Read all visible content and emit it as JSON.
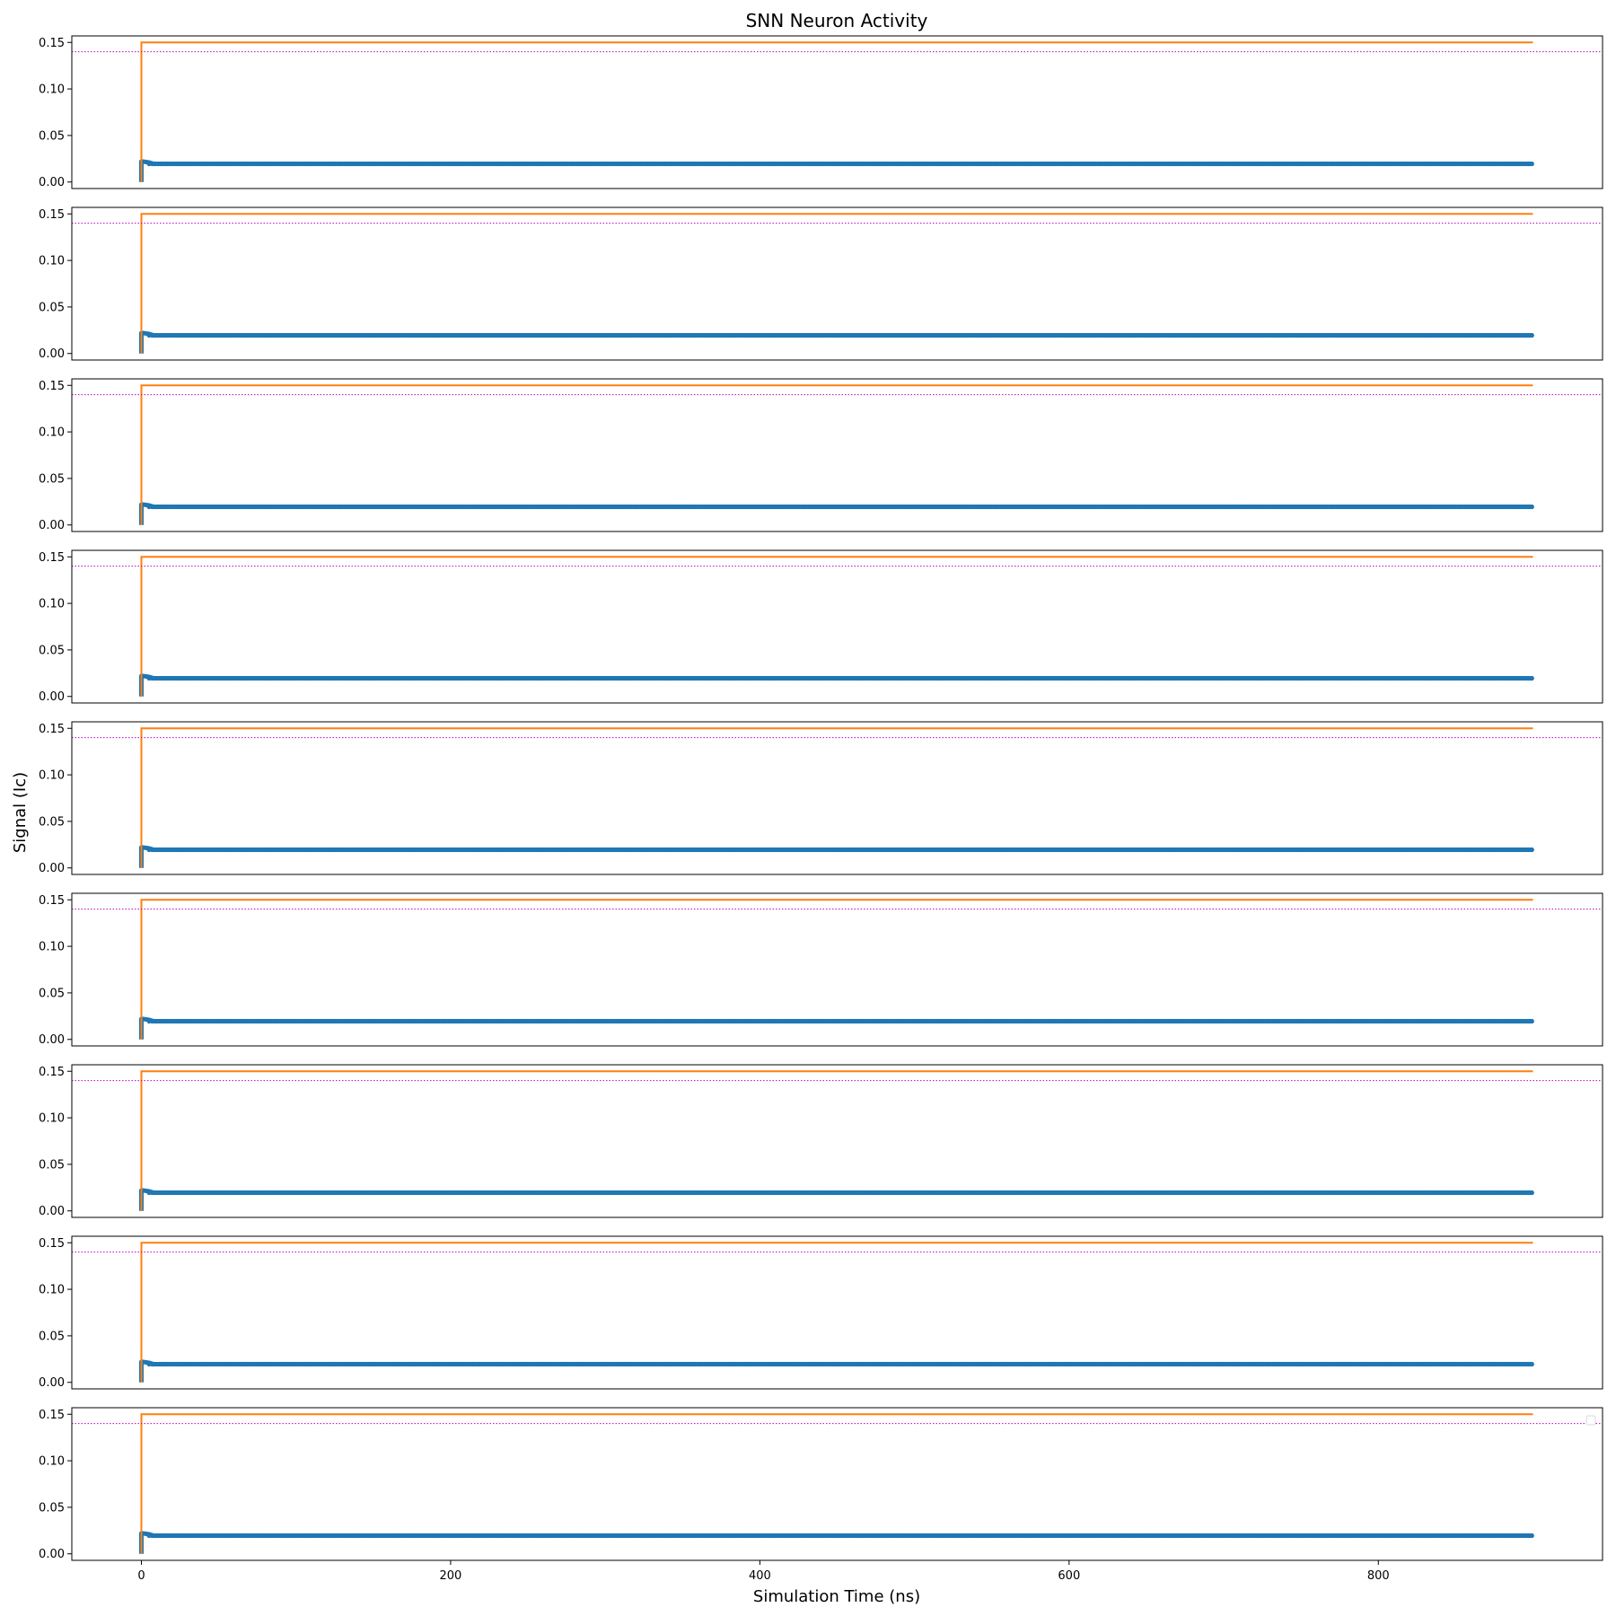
{
  "chart_data": {
    "type": "line",
    "title": "SNN Neuron Activity",
    "xlabel": "Simulation Time (ns)",
    "ylabel": "Signal (Ic)",
    "num_panels": 9,
    "sharex": true,
    "xlim": [
      -45,
      945
    ],
    "ylim": [
      -0.007,
      0.157
    ],
    "x_ticks": [
      0,
      200,
      400,
      600,
      800
    ],
    "x_tick_labels": [
      "0",
      "200",
      "400",
      "600",
      "800"
    ],
    "y_ticks": [
      0.0,
      0.05,
      0.1,
      0.15
    ],
    "y_tick_labels": [
      "0.00",
      "0.05",
      "0.10",
      "0.15"
    ],
    "grid": false,
    "legend": {
      "location": "upper right",
      "panel": 9,
      "entries": []
    },
    "colors": {
      "membrane": "#1f77b4",
      "input": "#ff7f0e",
      "threshold": "#bf00bf"
    },
    "panels": [
      {
        "series": [
          {
            "role": "membrane",
            "style": "thick-marker-line",
            "x": [
              0,
              0,
              1,
              5,
              8,
              10,
              900
            ],
            "y": [
              0.0,
              0.022,
              0.022,
              0.021,
              0.0195,
              0.0195,
              0.0195
            ]
          },
          {
            "role": "input",
            "style": "step-line",
            "x": [
              0,
              0,
              900
            ],
            "y": [
              0.0,
              0.15,
              0.15
            ]
          },
          {
            "role": "threshold",
            "style": "dotted-hline",
            "y": 0.14
          }
        ]
      },
      {
        "series": [
          {
            "role": "membrane",
            "style": "thick-marker-line",
            "x": [
              0,
              0,
              1,
              5,
              8,
              10,
              900
            ],
            "y": [
              0.0,
              0.022,
              0.022,
              0.021,
              0.0195,
              0.0195,
              0.0195
            ]
          },
          {
            "role": "input",
            "style": "step-line",
            "x": [
              0,
              0,
              900
            ],
            "y": [
              0.0,
              0.15,
              0.15
            ]
          },
          {
            "role": "threshold",
            "style": "dotted-hline",
            "y": 0.14
          }
        ]
      },
      {
        "series": [
          {
            "role": "membrane",
            "style": "thick-marker-line",
            "x": [
              0,
              0,
              1,
              5,
              8,
              10,
              900
            ],
            "y": [
              0.0,
              0.022,
              0.022,
              0.021,
              0.0195,
              0.0195,
              0.0195
            ]
          },
          {
            "role": "input",
            "style": "step-line",
            "x": [
              0,
              0,
              900
            ],
            "y": [
              0.0,
              0.15,
              0.15
            ]
          },
          {
            "role": "threshold",
            "style": "dotted-hline",
            "y": 0.14
          }
        ]
      },
      {
        "series": [
          {
            "role": "membrane",
            "style": "thick-marker-line",
            "x": [
              0,
              0,
              1,
              5,
              8,
              10,
              900
            ],
            "y": [
              0.0,
              0.022,
              0.022,
              0.021,
              0.0195,
              0.0195,
              0.0195
            ]
          },
          {
            "role": "input",
            "style": "step-line",
            "x": [
              0,
              0,
              900
            ],
            "y": [
              0.0,
              0.15,
              0.15
            ]
          },
          {
            "role": "threshold",
            "style": "dotted-hline",
            "y": 0.14
          }
        ]
      },
      {
        "series": [
          {
            "role": "membrane",
            "style": "thick-marker-line",
            "x": [
              0,
              0,
              1,
              5,
              8,
              10,
              900
            ],
            "y": [
              0.0,
              0.022,
              0.022,
              0.021,
              0.0195,
              0.0195,
              0.0195
            ]
          },
          {
            "role": "input",
            "style": "step-line",
            "x": [
              0,
              0,
              900
            ],
            "y": [
              0.0,
              0.15,
              0.15
            ]
          },
          {
            "role": "threshold",
            "style": "dotted-hline",
            "y": 0.14
          }
        ]
      },
      {
        "series": [
          {
            "role": "membrane",
            "style": "thick-marker-line",
            "x": [
              0,
              0,
              1,
              5,
              8,
              10,
              900
            ],
            "y": [
              0.0,
              0.022,
              0.022,
              0.021,
              0.0195,
              0.0195,
              0.0195
            ]
          },
          {
            "role": "input",
            "style": "step-line",
            "x": [
              0,
              0,
              900
            ],
            "y": [
              0.0,
              0.15,
              0.15
            ]
          },
          {
            "role": "threshold",
            "style": "dotted-hline",
            "y": 0.14
          }
        ]
      },
      {
        "series": [
          {
            "role": "membrane",
            "style": "thick-marker-line",
            "x": [
              0,
              0,
              1,
              5,
              8,
              10,
              900
            ],
            "y": [
              0.0,
              0.022,
              0.022,
              0.021,
              0.0195,
              0.0195,
              0.0195
            ]
          },
          {
            "role": "input",
            "style": "step-line",
            "x": [
              0,
              0,
              900
            ],
            "y": [
              0.0,
              0.15,
              0.15
            ]
          },
          {
            "role": "threshold",
            "style": "dotted-hline",
            "y": 0.14
          }
        ]
      },
      {
        "series": [
          {
            "role": "membrane",
            "style": "thick-marker-line",
            "x": [
              0,
              0,
              1,
              5,
              8,
              10,
              900
            ],
            "y": [
              0.0,
              0.022,
              0.022,
              0.021,
              0.0195,
              0.0195,
              0.0195
            ]
          },
          {
            "role": "input",
            "style": "step-line",
            "x": [
              0,
              0,
              900
            ],
            "y": [
              0.0,
              0.15,
              0.15
            ]
          },
          {
            "role": "threshold",
            "style": "dotted-hline",
            "y": 0.14
          }
        ]
      },
      {
        "series": [
          {
            "role": "membrane",
            "style": "thick-marker-line",
            "x": [
              0,
              0,
              1,
              5,
              8,
              10,
              900
            ],
            "y": [
              0.0,
              0.022,
              0.022,
              0.021,
              0.0195,
              0.0195,
              0.0195
            ]
          },
          {
            "role": "input",
            "style": "step-line",
            "x": [
              0,
              0,
              900
            ],
            "y": [
              0.0,
              0.15,
              0.15
            ]
          },
          {
            "role": "threshold",
            "style": "dotted-hline",
            "y": 0.14
          }
        ]
      }
    ]
  }
}
